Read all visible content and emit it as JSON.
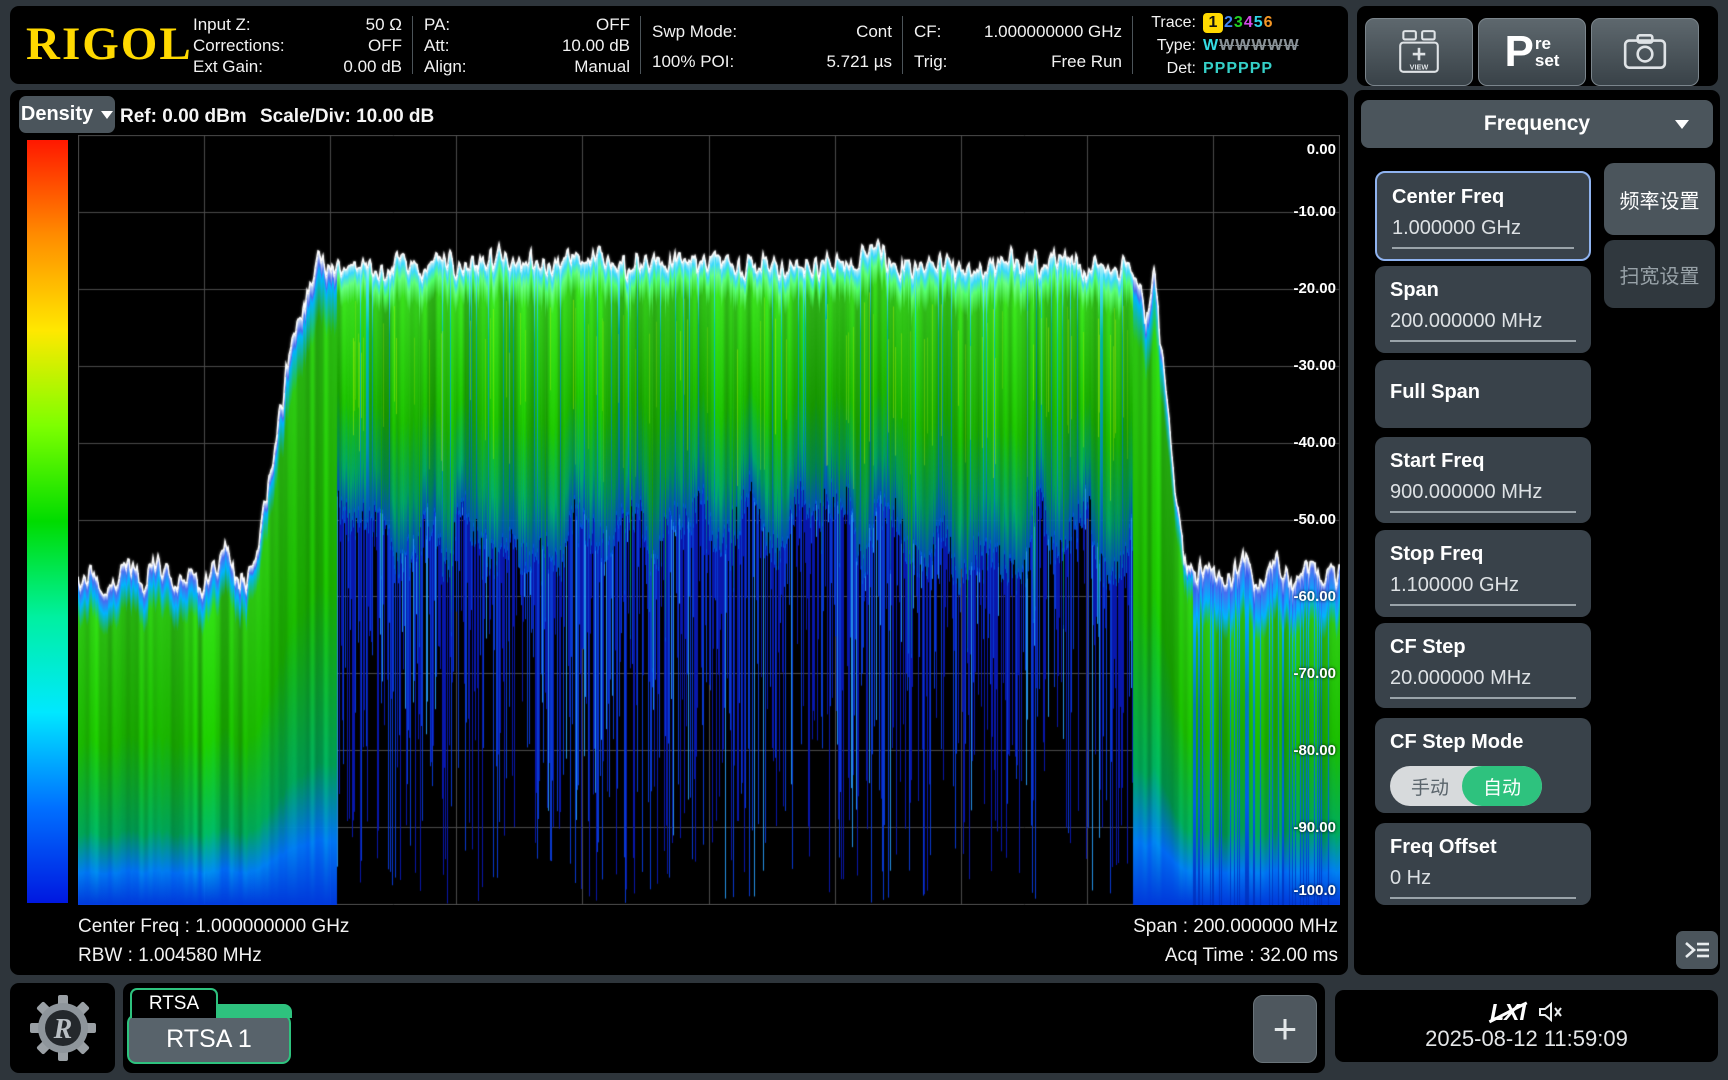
{
  "brand": "RIGOL",
  "top_bar": {
    "groups": [
      {
        "rows": [
          {
            "label": "Input Z:",
            "value": "50 Ω"
          },
          {
            "label": "Corrections:",
            "value": "OFF"
          },
          {
            "label": "Ext Gain:",
            "value": "0.00 dB"
          }
        ]
      },
      {
        "rows": [
          {
            "label": "PA:",
            "value": "OFF"
          },
          {
            "label": "Att:",
            "value": "10.00 dB"
          },
          {
            "label": "Align:",
            "value": "Manual"
          }
        ]
      },
      {
        "rows": [
          {
            "label": "Swp Mode:",
            "value": "Cont"
          },
          {
            "label": "100% POI:",
            "value": "5.721 µs"
          }
        ]
      },
      {
        "rows": [
          {
            "label": "CF:",
            "value": "1.000000000 GHz"
          },
          {
            "label": "Trig:",
            "value": "Free Run"
          }
        ]
      }
    ],
    "trace_block": {
      "row_labels": [
        "Trace:",
        "Type:",
        "Det:"
      ],
      "numbers": [
        "1",
        "2",
        "3",
        "4",
        "5",
        "6"
      ],
      "number_colors": [
        "#111111",
        "#4285f4",
        "#23d323",
        "#d44ae8",
        "#2fd5e6",
        "#f59624"
      ],
      "number_bg": [
        "#ffd900",
        "",
        "",
        "",
        "",
        ""
      ],
      "types": [
        "W",
        "W",
        "W",
        "W",
        "W",
        "W"
      ],
      "type_colors": [
        "#35dce4",
        "#8a9298",
        "#8a9298",
        "#8a9298",
        "#8a9298",
        "#8a9298"
      ],
      "type_struck": [
        false,
        true,
        true,
        true,
        true,
        true
      ],
      "dets": [
        "P",
        "P",
        "P",
        "P",
        "P",
        "P"
      ],
      "det_color": "#35d0c8"
    },
    "view_button_label": "VIEW",
    "preset": {
      "p": "P",
      "re": "re",
      "set": "set"
    }
  },
  "display": {
    "mode_button": "Density",
    "ref": "Ref: 0.00 dBm",
    "scale": "Scale/Div: 10.00 dB",
    "footer": {
      "center_freq": "Center Freq : 1.000000000 GHz",
      "rbw": "RBW : 1.004580 MHz",
      "span": "Span : 200.000000 MHz",
      "acq_time": "Acq Time : 32.00 ms"
    }
  },
  "sidebar": {
    "title": "Frequency",
    "tabs": [
      {
        "label": "频率设置",
        "active": true
      },
      {
        "label": "扫宽设置",
        "active": false
      }
    ],
    "items": [
      {
        "label": "Center Freq",
        "value": "1.000000 GHz",
        "selected": true
      },
      {
        "label": "Span",
        "value": "200.000000 MHz"
      },
      {
        "label": "Full Span"
      },
      {
        "label": "Start Freq",
        "value": "900.000000 MHz"
      },
      {
        "label": "Stop Freq",
        "value": "1.100000 GHz"
      },
      {
        "label": "CF Step",
        "value": "20.000000 MHz"
      },
      {
        "label": "CF Step Mode",
        "toggle": {
          "options": [
            "手动",
            "自动"
          ],
          "active_index": 1,
          "active_color": "#2ec27e"
        }
      },
      {
        "label": "Freq Offset",
        "value": "0 Hz"
      }
    ]
  },
  "taskbar": {
    "mode_label": "RTSA",
    "instance_label": "RTSA 1",
    "add_button": "+",
    "lxi_label": "LXI",
    "datetime": "2025-08-12 11:59:09"
  },
  "chart_data": {
    "type": "heatmap",
    "title": "RTSA density spectrum display",
    "x_axis": {
      "start": "900.000000 MHz",
      "stop": "1.100000 GHz",
      "center": "1.000000000 GHz",
      "span": "200.000000 MHz",
      "divisions": 10
    },
    "y_axis": {
      "unit": "dBm",
      "ref_level_dbm": 0,
      "scale_per_div_db": 10,
      "ylim": [
        -100,
        0
      ],
      "ticks": [
        "0.00",
        "-10.00",
        "-20.00",
        "-30.00",
        "-40.00",
        "-50.00",
        "-60.00",
        "-70.00",
        "-80.00",
        "-90.00",
        "-100.0"
      ]
    },
    "grid": {
      "rows": 10,
      "cols": 10,
      "color": "#4b4b4b"
    },
    "noise_floor_dbm": -58,
    "signal_plateau_dbm": -16.5,
    "signal_band_frac": [
      0.14,
      0.88
    ],
    "band_body_bottom_dbm": [
      -44,
      -62
    ],
    "spike_depth_dbm_max": -100,
    "colormap_bottom_to_top": [
      "#0018e0",
      "#0070ff",
      "#00e8ff",
      "#00f0a0",
      "#00dc00",
      "#7dff00",
      "#ffe800",
      "#ff8c00",
      "#ff1800"
    ],
    "max_trace_color": "#ffffff",
    "envelope_max_trace_frac_dbm": [
      [
        0,
        -58.5
      ],
      [
        0.012,
        -56.5
      ],
      [
        0.025,
        -59.5
      ],
      [
        0.04,
        -55.5
      ],
      [
        0.052,
        -58.5
      ],
      [
        0.063,
        -55
      ],
      [
        0.075,
        -58.5
      ],
      [
        0.088,
        -56.5
      ],
      [
        0.098,
        -59.5
      ],
      [
        0.108,
        -55.5
      ],
      [
        0.118,
        -54.5
      ],
      [
        0.127,
        -57.5
      ],
      [
        0.134,
        -58.5
      ],
      [
        0.141,
        -54
      ],
      [
        0.149,
        -47
      ],
      [
        0.157,
        -39
      ],
      [
        0.165,
        -31
      ],
      [
        0.173,
        -25
      ],
      [
        0.182,
        -20.5
      ],
      [
        0.191,
        -15.5
      ],
      [
        0.197,
        -18
      ],
      [
        0.21,
        -17.5
      ],
      [
        0.225,
        -16.2
      ],
      [
        0.24,
        -17.6
      ],
      [
        0.255,
        -16
      ],
      [
        0.27,
        -17.8
      ],
      [
        0.285,
        -16.2
      ],
      [
        0.3,
        -17.3
      ],
      [
        0.315,
        -16.6
      ],
      [
        0.33,
        -15.7
      ],
      [
        0.345,
        -17.3
      ],
      [
        0.36,
        -16.2
      ],
      [
        0.375,
        -17.7
      ],
      [
        0.39,
        -16
      ],
      [
        0.405,
        -17
      ],
      [
        0.42,
        -15.8
      ],
      [
        0.435,
        -17.4
      ],
      [
        0.45,
        -16.4
      ],
      [
        0.465,
        -17.6
      ],
      [
        0.48,
        -15.9
      ],
      [
        0.495,
        -17.1
      ],
      [
        0.51,
        -15.8
      ],
      [
        0.525,
        -17.4
      ],
      [
        0.54,
        -16.5
      ],
      [
        0.555,
        -17.7
      ],
      [
        0.57,
        -16
      ],
      [
        0.585,
        -17.3
      ],
      [
        0.6,
        -16.1
      ],
      [
        0.615,
        -17.5
      ],
      [
        0.63,
        -14.3
      ],
      [
        0.645,
        -16.9
      ],
      [
        0.66,
        -17.6
      ],
      [
        0.675,
        -16.2
      ],
      [
        0.69,
        -17.1
      ],
      [
        0.705,
        -16.5
      ],
      [
        0.72,
        -17.7
      ],
      [
        0.735,
        -16.1
      ],
      [
        0.75,
        -17.2
      ],
      [
        0.765,
        -16.4
      ],
      [
        0.78,
        -15.6
      ],
      [
        0.795,
        -17.1
      ],
      [
        0.81,
        -16.4
      ],
      [
        0.822,
        -17.3
      ],
      [
        0.832,
        -16.8
      ],
      [
        0.84,
        -18.5
      ],
      [
        0.847,
        -23
      ],
      [
        0.853,
        -17.5
      ],
      [
        0.858,
        -26
      ],
      [
        0.864,
        -36
      ],
      [
        0.87,
        -46
      ],
      [
        0.877,
        -54
      ],
      [
        0.884,
        -57.5
      ],
      [
        0.896,
        -55.5
      ],
      [
        0.91,
        -58.5
      ],
      [
        0.924,
        -55.8
      ],
      [
        0.937,
        -58.8
      ],
      [
        0.95,
        -55.2
      ],
      [
        0.962,
        -58
      ],
      [
        0.975,
        -55.8
      ],
      [
        0.988,
        -57.5
      ],
      [
        1,
        -57
      ]
    ]
  }
}
